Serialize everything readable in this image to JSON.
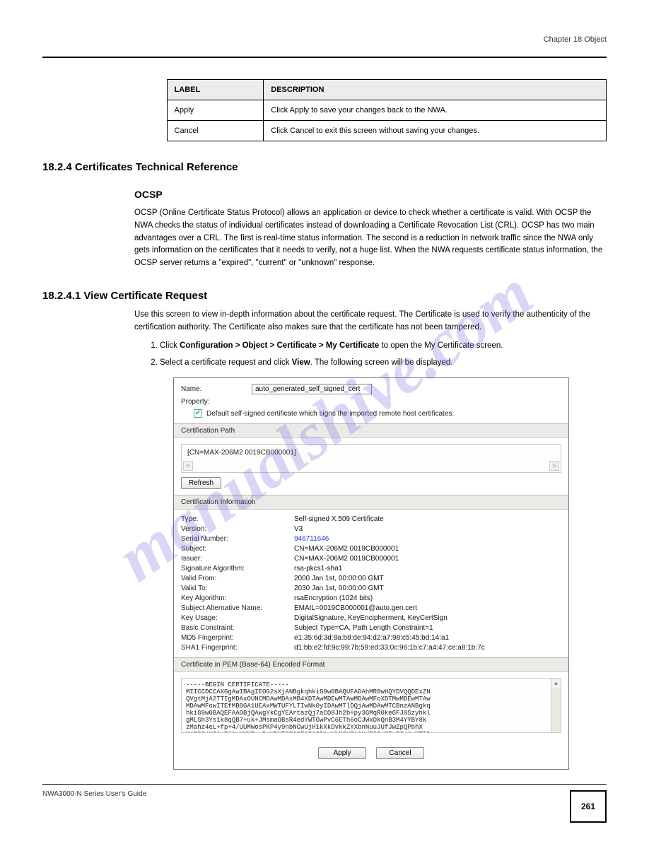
{
  "header": {
    "chapter": "Chapter 18 Object"
  },
  "defTable": {
    "heads": [
      "LABEL",
      "DESCRIPTION"
    ],
    "rows": [
      [
        "Apply",
        "Click Apply to save your changes back to the NWA."
      ],
      [
        "Cancel",
        "Click Cancel to exit this screen without saving your changes."
      ]
    ]
  },
  "headings": {
    "main": "18.2.4  Certificates Technical Reference",
    "sub": "OCSP",
    "view": "18.2.4.1  View Certificate Request"
  },
  "para1": "OCSP (Online Certificate Status Protocol) allows an application or device to check whether a certificate is valid. With OCSP the NWA checks the status of individual certificates instead of downloading a Certificate Revocation List (CRL). OCSP has two main advantages over a CRL. The first is real-time status information. The second is a reduction in network traffic since the NWA only gets information on the certificates that it needs to verify, not a huge list. When the NWA requests certificate status information, the OCSP server returns a \"expired\", \"current\" or \"unknown\" response.",
  "para2": "Use this screen to view in-depth information about the certificate request. The Certificate is used to verify the authenticity of the certification authority. The Certificate also makes sure that the certificate has not been tampered.",
  "steps": [
    [
      "Click ",
      "Configuration > Object > Certificate > My Certificate",
      " to open the My Certificate screen."
    ],
    [
      "Select a certificate request and click ",
      "View",
      ". The following screen will be displayed."
    ]
  ],
  "screenshot": {
    "name_label": "Name:",
    "name_value": "auto_generated_self_signed_cert",
    "property_label": "Property:",
    "property_text": "Default self-signed certificate which signs the imported remote host certificates.",
    "cert_path_head": "Certification Path",
    "cert_path_value": "[CN=MAX-206M2 0019CB000001]",
    "refresh": "Refresh",
    "cert_info_head": "Certification Information",
    "info": [
      [
        "Type:",
        "Self-signed X.509 Certificate",
        false
      ],
      [
        "Version:",
        "V3",
        false
      ],
      [
        "Serial Number:",
        "946711646",
        true
      ],
      [
        "Subject:",
        "CN=MAX-206M2 0019CB000001",
        false
      ],
      [
        "Issuer:",
        "CN=MAX-206M2 0019CB000001",
        false
      ],
      [
        "Signature Algorithm:",
        "rsa-pkcs1-sha1",
        false
      ],
      [
        "Valid From:",
        "2000 Jan 1st, 00:00:00 GMT",
        false
      ],
      [
        "Valid To:",
        "2030 Jan 1st, 00:00:00 GMT",
        false
      ],
      [
        "Key Algorithm:",
        "rsaEncryption (1024 bits)",
        false
      ],
      [
        "Subject Alternative Name:",
        "EMAIL=0019CB000001@auto.gen.cert",
        false
      ],
      [
        "Key Usage:",
        "DigitalSignature, KeyEncipherment, KeyCertSign",
        false
      ],
      [
        "Basic Constraint:",
        "Subject Type=CA, Path Length Constraint=1",
        false
      ],
      [
        "MD5 Fingerprint:",
        "e1:35:6d:3d:8a:b8:de:94:d2:a7:98:c5:45:bd:14:a1",
        false
      ],
      [
        "SHA1 Fingerprint:",
        "d1:bb:e2:fd:9c:99:7b:59:ed:33:0c:96:1b:c7:a4:47:ce:a8:1b:7c",
        false
      ]
    ],
    "pem_head": "Certificate in PEM (Base-64) Encoded Format",
    "pem_body": "-----BEGIN CERTIFICATE-----\nMIICCDCCAXGgAwIBAgIEOG2sXjANBgkqhkiG9w0BAQUFADAhMR8wHQYDVQQDExZN\nQVgtMjA2TTIgMDAxOUNCMDAwMDAxMB4XDTAwMDEwMTAwMDAwMFoXDTMwMDEwMTAw\nMDAwMFowITEfMB0GA1UEAxMWTUFYLTIwNk0yIDAwMTlDQjAwMDAwMTCBnzANBgkq\nhkiG9w0BAQEFAAOBjQAwgYkCgYEArtazQj7aCO8Jh2b+py3GMqR0keGFJ9Szyhkl\ngMLSh3Ys1k8qQB7+uk+JMsmaOBsR4edYWTGwPvC6ETh6oCJWxDkQnB3M4YYBY8k\nzMahz4eL+fp+4/UUMWosPKP4y9nbNCwUjH1kXkDvkkZYXbnNuuJUfJwZpQPbhX\nMjRS9jUCAwEAAaNNMEswDgYDVR0PAQEABAQDAgKkMCUGA1UdEQQeMByBGjAwMTlD\nQjAwMDAwMUBhdXRvLmdlbi5jZXJ0MBIGA1UdEwEBAAQIMAYBAf8CAQEwDQYJKoZI",
    "apply": "Apply",
    "cancel": "Cancel"
  },
  "footer": {
    "guide": "NWA3000-N Series User's Guide",
    "page": "261"
  }
}
